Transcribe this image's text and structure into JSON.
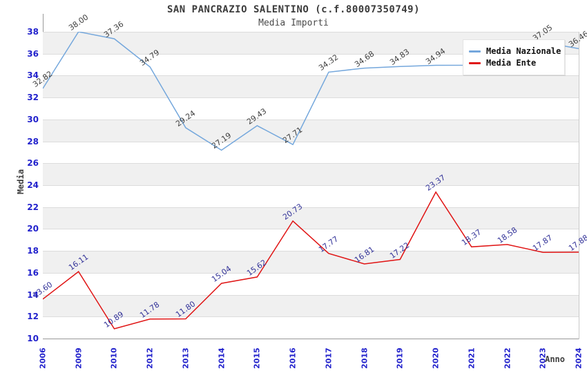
{
  "chart_data": {
    "type": "line",
    "title": "SAN PANCRAZIO SALENTINO (c.f.80007350749)",
    "subtitle": "Media Importi",
    "xlabel": "Anno",
    "ylabel": "Media",
    "ylim": [
      10,
      38
    ],
    "y_tick_step": 2,
    "grid": "horizontal gridlines with alternating gray/white bands",
    "band_colors": [
      "#f0f0f0",
      "#ffffff"
    ],
    "axis_tick_color": "#2222cc",
    "legend_position": "top-right",
    "categories": [
      "2006",
      "2009",
      "2010",
      "2012",
      "2013",
      "2014",
      "2015",
      "2016",
      "2017",
      "2018",
      "2019",
      "2020",
      "2021",
      "2022",
      "2023",
      "2024"
    ],
    "series": [
      {
        "name": "Media Nazionale",
        "color": "#74a7dc",
        "label_color": "#404040",
        "values": [
          32.82,
          38.0,
          37.36,
          34.79,
          29.24,
          27.19,
          29.43,
          27.71,
          34.32,
          34.68,
          34.83,
          34.94,
          34.95,
          35.9,
          37.05,
          36.46
        ],
        "labels": [
          "32.82",
          "38.00",
          "37.36",
          "34.79",
          "29.24",
          "27.19",
          "29.43",
          "27.71",
          "34.32",
          "34.68",
          "34.83",
          "34.94",
          "",
          "",
          "37.05",
          "36.46"
        ],
        "estimated_indices": [
          12,
          13
        ]
      },
      {
        "name": "Media Ente",
        "color": "#e01414",
        "label_color": "#333399",
        "values": [
          13.6,
          16.11,
          10.89,
          11.78,
          11.8,
          15.04,
          15.62,
          20.73,
          17.77,
          16.81,
          17.22,
          23.37,
          18.37,
          18.58,
          17.87,
          17.88
        ],
        "labels": [
          "13.60",
          "16.11",
          "10.89",
          "11.78",
          "11.80",
          "15.04",
          "15.62",
          "20.73",
          "17.77",
          "16.81",
          "17.22",
          "23.37",
          "18.37",
          "18.58",
          "17.87",
          "17.88"
        ]
      }
    ]
  }
}
